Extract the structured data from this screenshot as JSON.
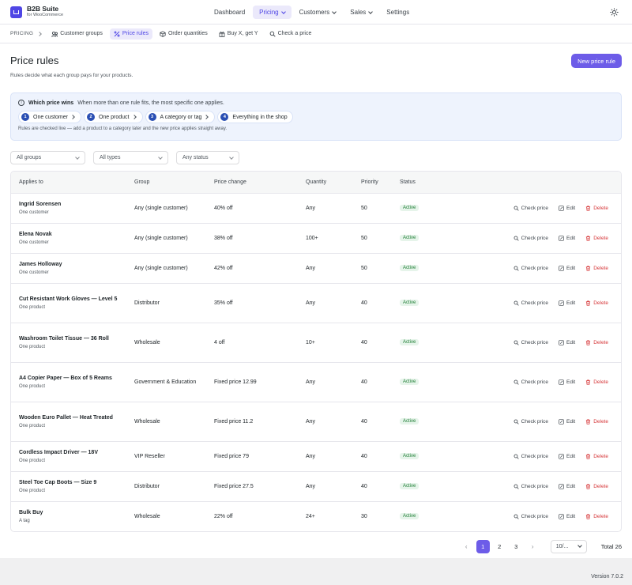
{
  "brand": {
    "name": "B2B Suite",
    "tagline": "for WooCommerce"
  },
  "nav": {
    "items": [
      {
        "label": "Dashboard",
        "active": false,
        "dropdown": false
      },
      {
        "label": "Pricing",
        "active": true,
        "dropdown": true
      },
      {
        "label": "Customers",
        "active": false,
        "dropdown": true
      },
      {
        "label": "Sales",
        "active": false,
        "dropdown": true
      },
      {
        "label": "Settings",
        "active": false,
        "dropdown": false
      }
    ]
  },
  "subnav": {
    "section": "PRICING",
    "items": [
      {
        "label": "Customer groups",
        "icon": "users-icon",
        "active": false
      },
      {
        "label": "Price rules",
        "icon": "percent-icon",
        "active": true
      },
      {
        "label": "Order quantities",
        "icon": "box-icon",
        "active": false
      },
      {
        "label": "Buy X, get Y",
        "icon": "gift-icon",
        "active": false
      },
      {
        "label": "Check a price",
        "icon": "search-icon",
        "active": false
      }
    ]
  },
  "page": {
    "title": "Price rules",
    "subtitle": "Rules decide what each group pays for your products.",
    "new_button": "New price rule"
  },
  "info": {
    "heading": "Which price wins",
    "text": "When more than one rule fits, the most specific one applies.",
    "steps": [
      {
        "num": "1",
        "label": "One customer"
      },
      {
        "num": "2",
        "label": "One product"
      },
      {
        "num": "3",
        "label": "A category or tag"
      },
      {
        "num": "4",
        "label": "Everything in the shop"
      }
    ],
    "note": "Rules are checked live — add a product to a category later and the new price applies straight away."
  },
  "filters": {
    "groups": "All groups",
    "types": "All types",
    "status": "Any status"
  },
  "table": {
    "headers": {
      "applies_to": "Applies to",
      "group": "Group",
      "price_change": "Price change",
      "quantity": "Quantity",
      "priority": "Priority",
      "status": "Status"
    },
    "actions": {
      "check": "Check price",
      "edit": "Edit",
      "delete": "Delete"
    },
    "rows": [
      {
        "name": "Ingrid Sorensen",
        "type": "One customer",
        "group": "Any (single customer)",
        "price": "40% off",
        "qty": "Any",
        "priority": "50",
        "status": "Active"
      },
      {
        "name": "Elena Novak",
        "type": "One customer",
        "group": "Any (single customer)",
        "price": "38% off",
        "qty": "100+",
        "priority": "50",
        "status": "Active"
      },
      {
        "name": "James Holloway",
        "type": "One customer",
        "group": "Any (single customer)",
        "price": "42% off",
        "qty": "Any",
        "priority": "50",
        "status": "Active"
      },
      {
        "name": "Cut Resistant Work Gloves — Level 5",
        "type": "One product",
        "group": "Distributor",
        "price": "35% off",
        "qty": "Any",
        "priority": "40",
        "status": "Active"
      },
      {
        "name": "Washroom Toilet Tissue — 36 Roll",
        "type": "One product",
        "group": "Wholesale",
        "price": "4 off",
        "qty": "10+",
        "priority": "40",
        "status": "Active"
      },
      {
        "name": "A4 Copier Paper — Box of 5 Reams",
        "type": "One product",
        "group": "Government & Education",
        "price": "Fixed price 12.99",
        "qty": "Any",
        "priority": "40",
        "status": "Active"
      },
      {
        "name": "Wooden Euro Pallet — Heat Treated",
        "type": "One product",
        "group": "Wholesale",
        "price": "Fixed price 11.2",
        "qty": "Any",
        "priority": "40",
        "status": "Active"
      },
      {
        "name": "Cordless Impact Driver — 18V",
        "type": "One product",
        "group": "VIP Reseller",
        "price": "Fixed price 79",
        "qty": "Any",
        "priority": "40",
        "status": "Active"
      },
      {
        "name": "Steel Toe Cap Boots — Size 9",
        "type": "One product",
        "group": "Distributor",
        "price": "Fixed price 27.5",
        "qty": "Any",
        "priority": "40",
        "status": "Active"
      },
      {
        "name": "Bulk Buy",
        "type": "A tag",
        "group": "Wholesale",
        "price": "22% off",
        "qty": "24+",
        "priority": "30",
        "status": "Active"
      }
    ]
  },
  "pagination": {
    "pages": [
      "1",
      "2",
      "3"
    ],
    "current": "1",
    "per_page": "10/...",
    "total": "Total 26"
  },
  "footer": {
    "version": "Version 7.0.2"
  },
  "colors": {
    "accent": "#6d5ce8",
    "active_nav_bg": "#ebe9fb",
    "info_bg": "#eef3fd",
    "danger": "#d63638",
    "success_bg": "#e6f4ea",
    "success_text": "#1e7e34"
  }
}
